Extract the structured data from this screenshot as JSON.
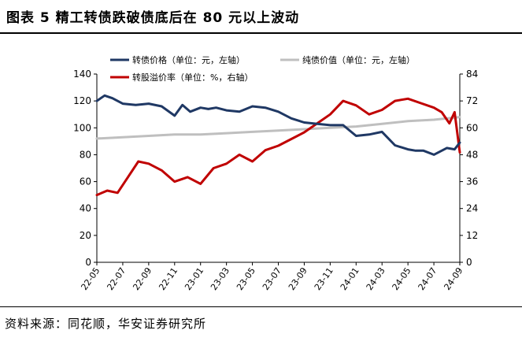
{
  "header": {
    "title": "图表 5 精工转债跌破债底后在 80 元以上波动"
  },
  "footer": {
    "source": "资料来源：同花顺，华安证券研究所"
  },
  "chart_data": {
    "type": "line",
    "x_ticks": [
      "22-05",
      "22-07",
      "22-09",
      "22-11",
      "23-01",
      "23-03",
      "23-05",
      "23-07",
      "23-09",
      "23-11",
      "24-01",
      "24-03",
      "24-05",
      "24-07",
      "24-09"
    ],
    "left_axis": {
      "ylim": [
        0,
        140
      ],
      "ticks": [
        0,
        20,
        40,
        60,
        80,
        100,
        120,
        140
      ]
    },
    "right_axis": {
      "ylim": [
        0,
        84
      ],
      "ticks": [
        0,
        12,
        24,
        36,
        48,
        60,
        72,
        84
      ]
    },
    "grid": false,
    "legend_position": "top",
    "series": [
      {
        "name": "转债价格（单位：元，左轴）",
        "axis": "left",
        "color": "#1f3864",
        "x": [
          0,
          0.3,
          0.6,
          1,
          1.5,
          2,
          2.5,
          3,
          3.3,
          3.6,
          4,
          4.3,
          4.6,
          5,
          5.5,
          6,
          6.5,
          7,
          7.5,
          8,
          8.5,
          9,
          9.5,
          10,
          10.5,
          11,
          11.5,
          12,
          12.3,
          12.6,
          13,
          13.5,
          13.8,
          14
        ],
        "values": [
          120,
          124,
          122,
          118,
          117,
          118,
          116,
          109,
          117,
          112,
          115,
          114,
          115,
          113,
          112,
          116,
          115,
          112,
          107,
          104,
          103,
          102,
          102,
          94,
          95,
          97,
          87,
          84,
          83,
          83,
          80,
          85,
          84,
          89
        ]
      },
      {
        "name": "纯债价值（单位：元，左轴）",
        "axis": "left",
        "color": "#bfbfbf",
        "x": [
          0,
          1,
          2,
          3,
          4,
          5,
          6,
          7,
          8,
          9,
          10,
          11,
          12,
          13,
          14
        ],
        "values": [
          92,
          93,
          94,
          95,
          95,
          96,
          97,
          98,
          99,
          100,
          101,
          103,
          105,
          106,
          108
        ]
      },
      {
        "name": "转股溢价率（单位：%，右轴）",
        "axis": "right",
        "color": "#c00000",
        "x": [
          0,
          0.4,
          0.8,
          1.2,
          1.6,
          2,
          2.5,
          3,
          3.5,
          4,
          4.5,
          5,
          5.5,
          6,
          6.5,
          7,
          7.5,
          8,
          8.5,
          9,
          9.5,
          10,
          10.5,
          11,
          11.5,
          12,
          12.5,
          13,
          13.3,
          13.6,
          13.8,
          14
        ],
        "values": [
          30,
          32,
          31,
          38,
          45,
          44,
          41,
          36,
          38,
          35,
          42,
          44,
          48,
          45,
          50,
          52,
          55,
          58,
          62,
          66,
          72,
          70,
          66,
          68,
          72,
          73,
          71,
          69,
          67,
          62,
          67,
          49
        ]
      }
    ]
  }
}
